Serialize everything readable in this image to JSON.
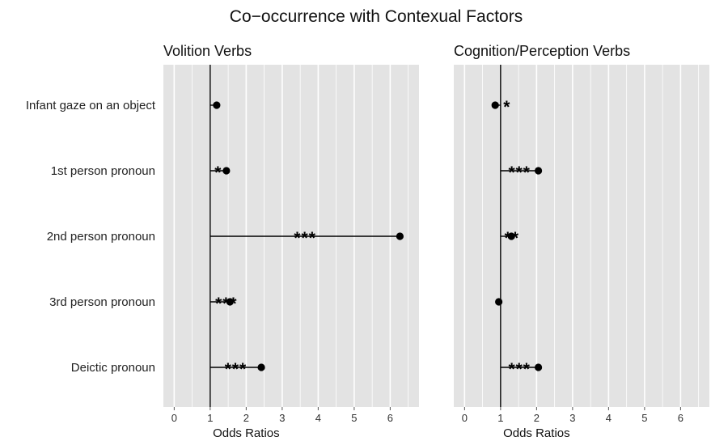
{
  "chart_data": {
    "type": "scatter",
    "title": "Co−occurrence with Contexual Factors",
    "categories": [
      "Infant gaze on an object",
      "1st person pronoun",
      "2nd person pronoun",
      "3rd person pronoun",
      "Deictic pronoun"
    ],
    "reference_line": 1,
    "xlim": [
      -0.3,
      6.8
    ],
    "xticks": [
      0,
      1,
      2,
      3,
      4,
      5,
      6
    ],
    "grid": true,
    "panels": [
      {
        "name": "Volition Verbs",
        "xlabel": "Odds Ratios",
        "values": [
          1.18,
          1.45,
          6.27,
          1.55,
          2.42
        ],
        "significance": [
          "",
          "*",
          "***",
          "***",
          "***"
        ]
      },
      {
        "name": "Cognition/Perception Verbs",
        "xlabel": "Odds Ratios",
        "values": [
          0.85,
          2.05,
          1.3,
          0.95,
          2.05
        ],
        "significance": [
          "*",
          "***",
          "**",
          "",
          "***"
        ]
      }
    ]
  }
}
